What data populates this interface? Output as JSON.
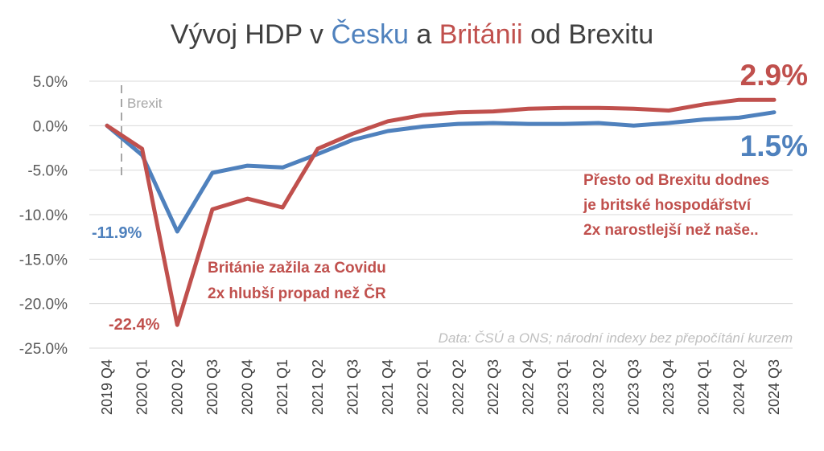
{
  "title": {
    "part1": "Vývoj HDP v ",
    "cz": "Česku",
    "part2": " a ",
    "uk": "Británii",
    "part3": " od Brexitu"
  },
  "colors": {
    "cz": "#4f81bd",
    "uk": "#c0504d",
    "grid": "#d9d9d9",
    "text": "#404040",
    "brexit": "#a6a6a6",
    "source": "#bfbfbf"
  },
  "brexit_label": "Brexit",
  "annotations": {
    "cz_min": "-11.9%",
    "uk_min": "-22.4%",
    "uk_end": "2.9%",
    "cz_end": "1.5%",
    "covid_line1": "Británie zažila za Covidu",
    "covid_line2": "2x hlubší propad než ČR",
    "since_line1": "Přesto od Brexitu dodnes",
    "since_line2": "je britské hospodářství",
    "since_line3": "2x narostlejší než naše..",
    "source": "Data: ČSÚ a ONS; národní indexy bez přepočítání kurzem"
  },
  "chart_data": {
    "type": "line",
    "categories": [
      "2019 Q4",
      "2020 Q1",
      "2020 Q2",
      "2020 Q3",
      "2020 Q4",
      "2021 Q1",
      "2021 Q2",
      "2021 Q3",
      "2021 Q4",
      "2022 Q1",
      "2022 Q2",
      "2022 Q3",
      "2022 Q4",
      "2023 Q1",
      "2023 Q2",
      "2023 Q3",
      "2023 Q4",
      "2024 Q1",
      "2024 Q2",
      "2024 Q3"
    ],
    "series": [
      {
        "name": "Česko",
        "color": "#4f81bd",
        "values": [
          0.0,
          -3.3,
          -11.9,
          -5.3,
          -4.5,
          -4.7,
          -3.2,
          -1.6,
          -0.6,
          -0.1,
          0.2,
          0.3,
          0.2,
          0.2,
          0.3,
          0.0,
          0.3,
          0.7,
          0.9,
          1.5
        ]
      },
      {
        "name": "Británie",
        "color": "#c0504d",
        "values": [
          0.0,
          -2.6,
          -22.4,
          -9.4,
          -8.2,
          -9.2,
          -2.6,
          -0.9,
          0.5,
          1.2,
          1.5,
          1.6,
          1.9,
          2.0,
          2.0,
          1.9,
          1.7,
          2.4,
          2.9,
          2.9
        ]
      }
    ],
    "yticks": [
      "5.0%",
      "0.0%",
      "-5.0%",
      "-10.0%",
      "-15.0%",
      "-20.0%",
      "-25.0%"
    ],
    "ylim": [
      -25,
      5
    ],
    "grid": true,
    "xlabel": "",
    "ylabel": ""
  }
}
